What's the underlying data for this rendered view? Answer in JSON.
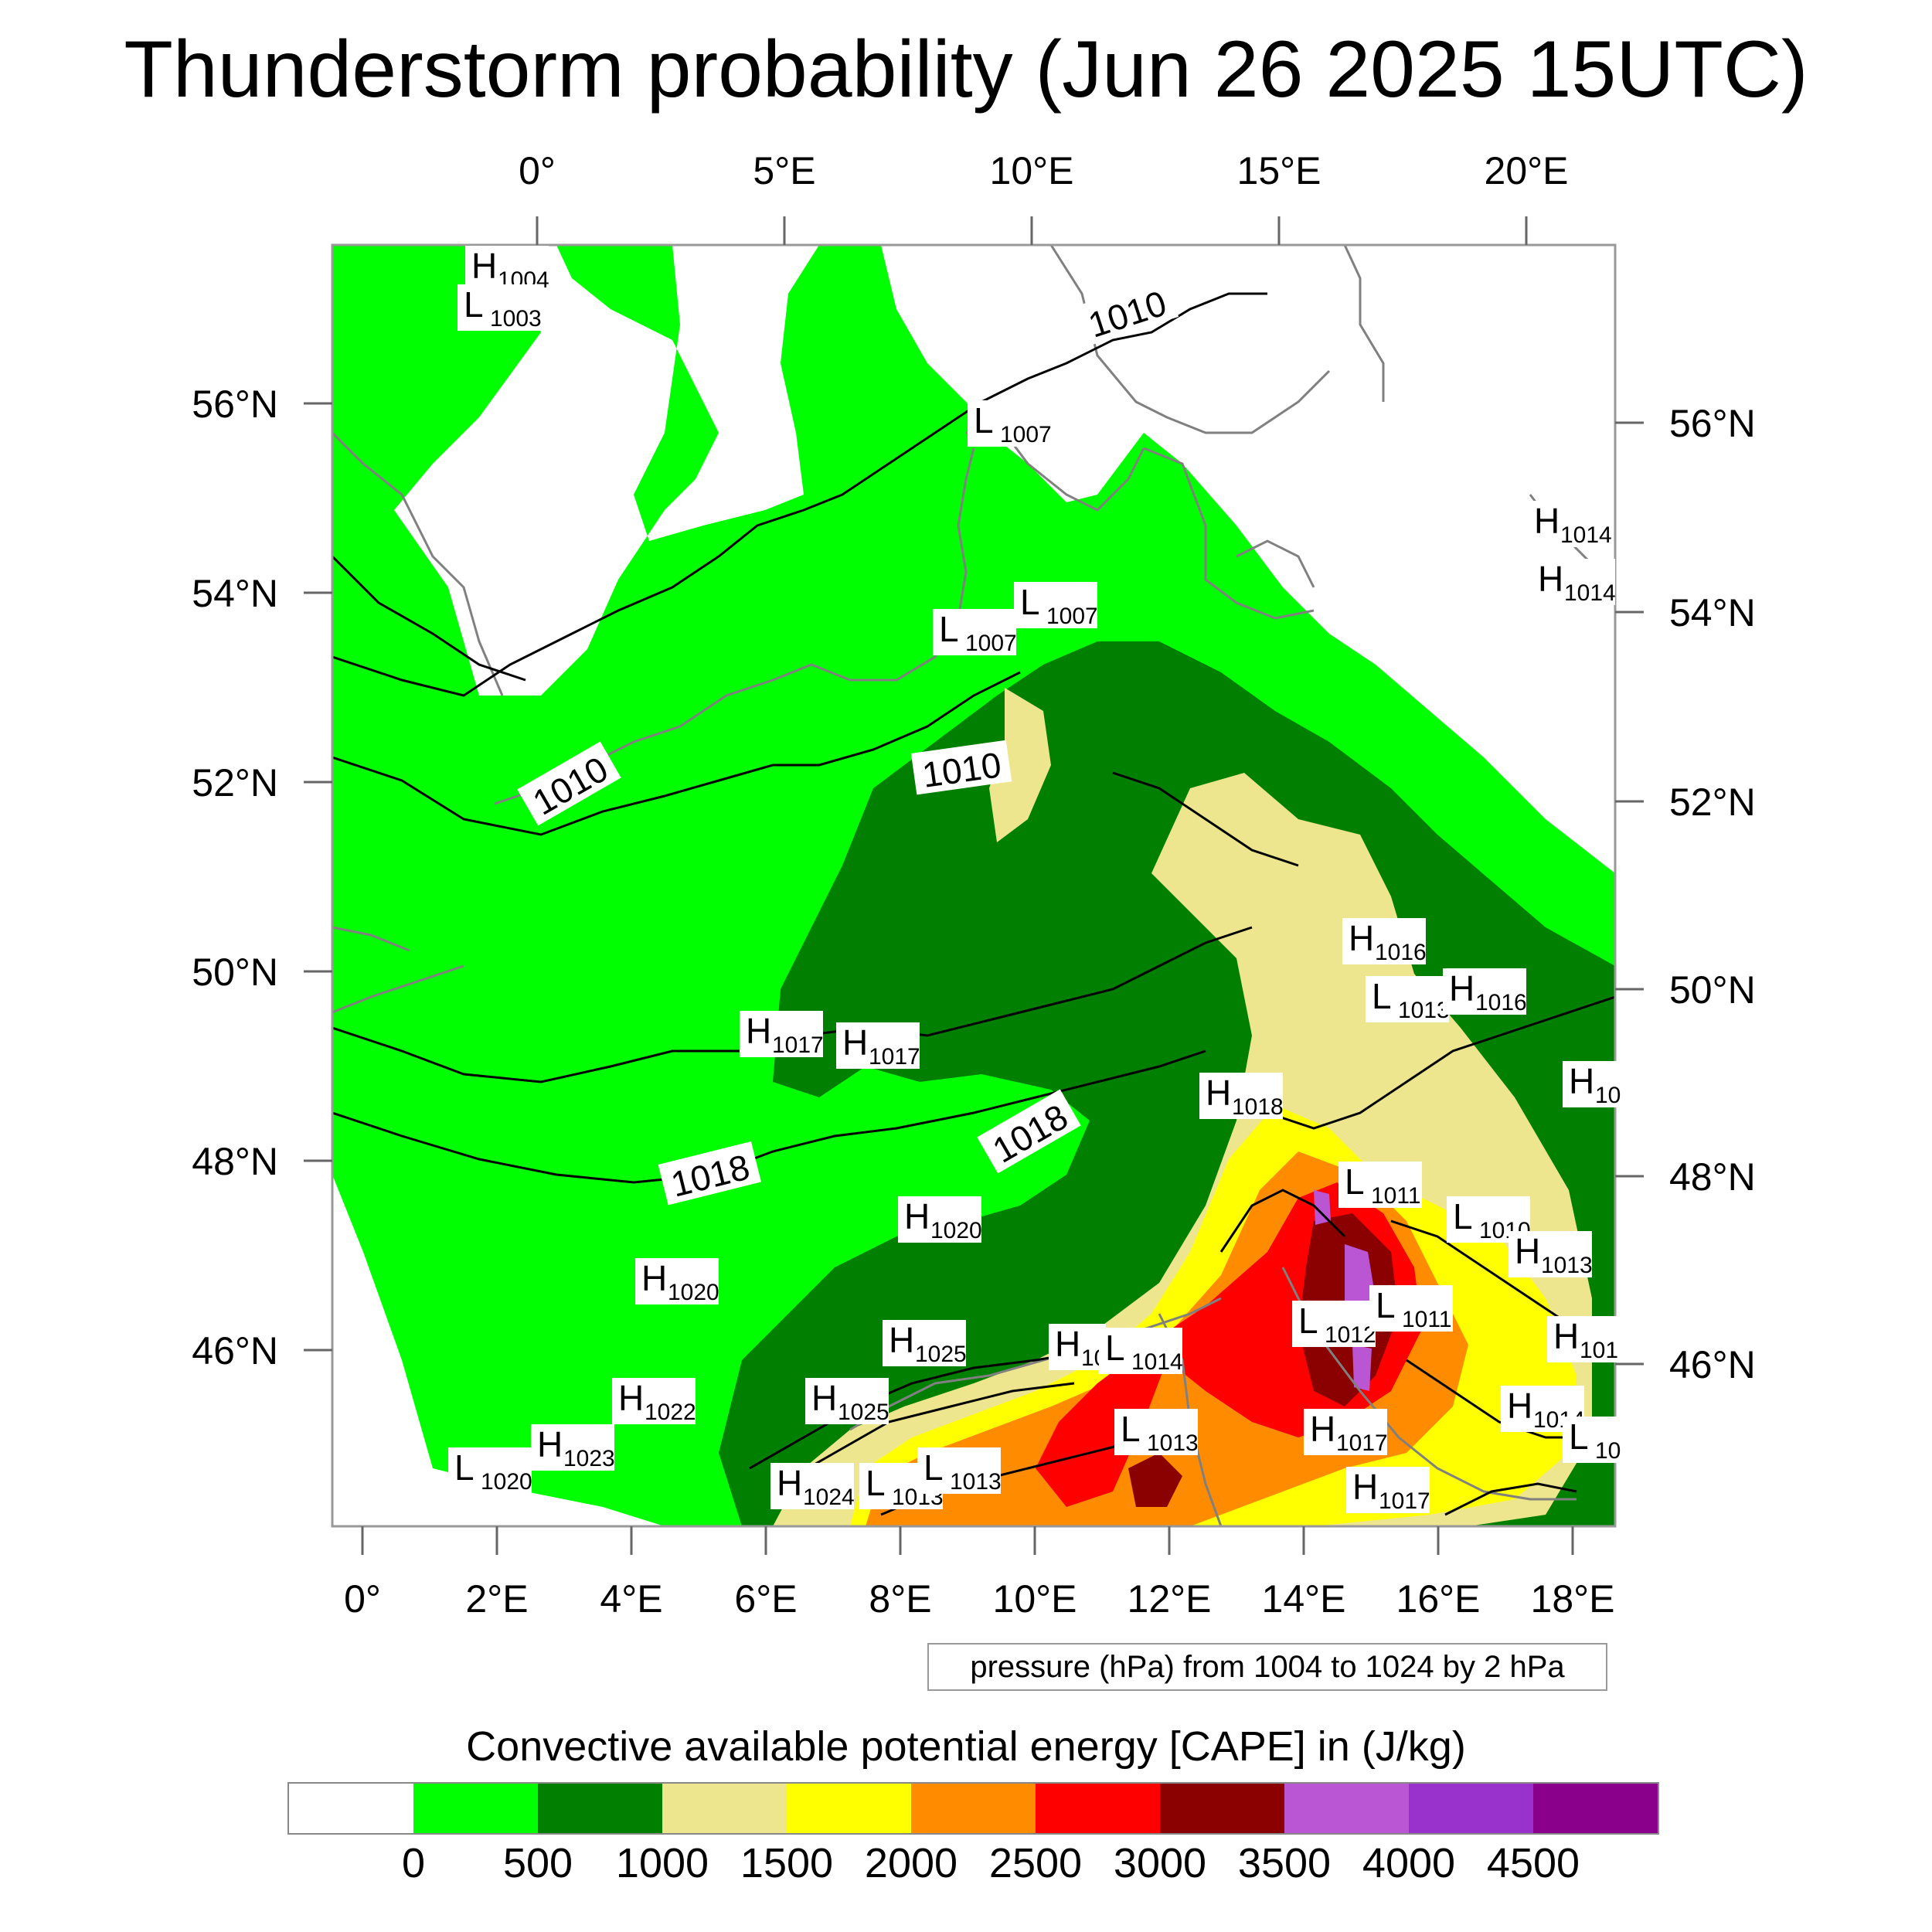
{
  "title": "Thunderstorm probability (Jun 26 2025 15UTC)",
  "top_axis_labels": [
    "0°",
    "5°E",
    "10°E",
    "15°E",
    "20°E"
  ],
  "bottom_axis_labels": [
    "0°",
    "2°E",
    "4°E",
    "6°E",
    "8°E",
    "10°E",
    "12°E",
    "14°E",
    "16°E",
    "18°E"
  ],
  "left_axis_labels": [
    "56°N",
    "54°N",
    "52°N",
    "50°N",
    "48°N",
    "46°N"
  ],
  "right_axis_labels": [
    "56°N",
    "54°N",
    "52°N",
    "50°N",
    "48°N",
    "46°N"
  ],
  "pressure_centers": [
    {
      "letter": "H",
      "value": "1004"
    },
    {
      "letter": "L",
      "value": "1003"
    },
    {
      "letter": "L",
      "value": "1007"
    },
    {
      "letter": "L",
      "value": "1007"
    },
    {
      "letter": "L",
      "value": "1007"
    },
    {
      "letter": "H",
      "value": "1014"
    },
    {
      "letter": "H",
      "value": "1014"
    },
    {
      "letter": "H",
      "value": "1016"
    },
    {
      "letter": "L",
      "value": "1013"
    },
    {
      "letter": "H",
      "value": "1016"
    },
    {
      "letter": "H",
      "value": "1017"
    },
    {
      "letter": "H",
      "value": "1017"
    },
    {
      "letter": "H",
      "value": "1018"
    },
    {
      "letter": "L",
      "value": "1011"
    },
    {
      "letter": "L",
      "value": "1010"
    },
    {
      "letter": "H",
      "value": "1013"
    },
    {
      "letter": "H",
      "value": "1020"
    },
    {
      "letter": "H",
      "value": "1020"
    },
    {
      "letter": "L",
      "value": "1012"
    },
    {
      "letter": "L",
      "value": "1011"
    },
    {
      "letter": "H",
      "value": "1025"
    },
    {
      "letter": "H",
      "value": "10"
    },
    {
      "letter": "L",
      "value": "1014"
    },
    {
      "letter": "H",
      "value": "1022"
    },
    {
      "letter": "H",
      "value": "1025"
    },
    {
      "letter": "L",
      "value": "1013"
    },
    {
      "letter": "H",
      "value": "1017"
    },
    {
      "letter": "H",
      "value": "1014"
    },
    {
      "letter": "L",
      "value": "1020"
    },
    {
      "letter": "H",
      "value": "1023"
    },
    {
      "letter": "H",
      "value": "1024"
    },
    {
      "letter": "L",
      "value": "1013"
    },
    {
      "letter": "L",
      "value": "1013"
    },
    {
      "letter": "H",
      "value": "1017"
    },
    {
      "letter": "H",
      "value": "10"
    },
    {
      "letter": "H",
      "value": "101"
    },
    {
      "letter": "L",
      "value": "10"
    }
  ],
  "isobar_labels": [
    "1010",
    "1010",
    "1010",
    "1018",
    "1018"
  ],
  "info_box": "pressure (hPa) from 1004 to 1024 by 2 hPa",
  "colorbar": {
    "title": "Convective available potential energy [CAPE] in (J/kg)",
    "colors": [
      "#ffffff",
      "#00ff00",
      "#007f00",
      "#eee68e",
      "#ffff00",
      "#ff8c00",
      "#ff0000",
      "#8b0000",
      "#ba55d3",
      "#9932cc",
      "#8b008b"
    ],
    "labels": [
      "0",
      "500",
      "1000",
      "1500",
      "2000",
      "2500",
      "3000",
      "3500",
      "4000",
      "4500"
    ]
  },
  "colors": {
    "cape_0_500": "#00ff00",
    "cape_500_1000": "#007f00",
    "cape_1000_1500": "#eee68e",
    "cape_1500_2000": "#ffff00",
    "cape_2000_2500": "#ff8c00",
    "cape_2500_3000": "#ff0000",
    "cape_3000_3500": "#8b0000",
    "cape_3500_4000": "#ba55d3",
    "cape_4000_4500": "#9932cc",
    "coastline": "#808080",
    "isobar": "#000000"
  }
}
